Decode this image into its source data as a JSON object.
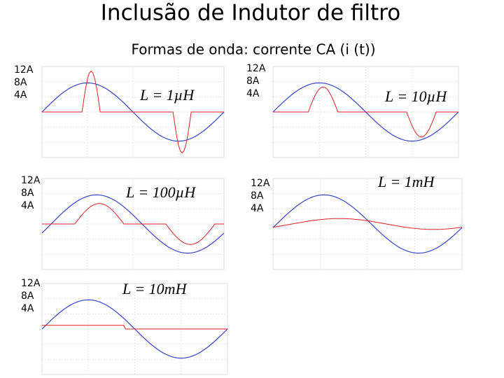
{
  "header": {
    "title": "Inclusão de Indutor de filtro",
    "subtitle": "Formas de onda: corrente CA (i (t))"
  },
  "panels": [
    {
      "labels": [
        "12A",
        "8A",
        "4A"
      ],
      "inductance": "L = 1µH"
    },
    {
      "labels": [
        "12A",
        "8A",
        "4A"
      ],
      "inductance": "L = 10µH"
    },
    {
      "labels": [
        "12A",
        "8A",
        "4A"
      ],
      "inductance": "L = 100µH"
    },
    {
      "labels": [
        "12A",
        "8A",
        "4A"
      ],
      "inductance": "L = 1mH"
    },
    {
      "labels": [
        "12A",
        "8A",
        "4A"
      ],
      "inductance": "L = 10mH"
    }
  ]
}
